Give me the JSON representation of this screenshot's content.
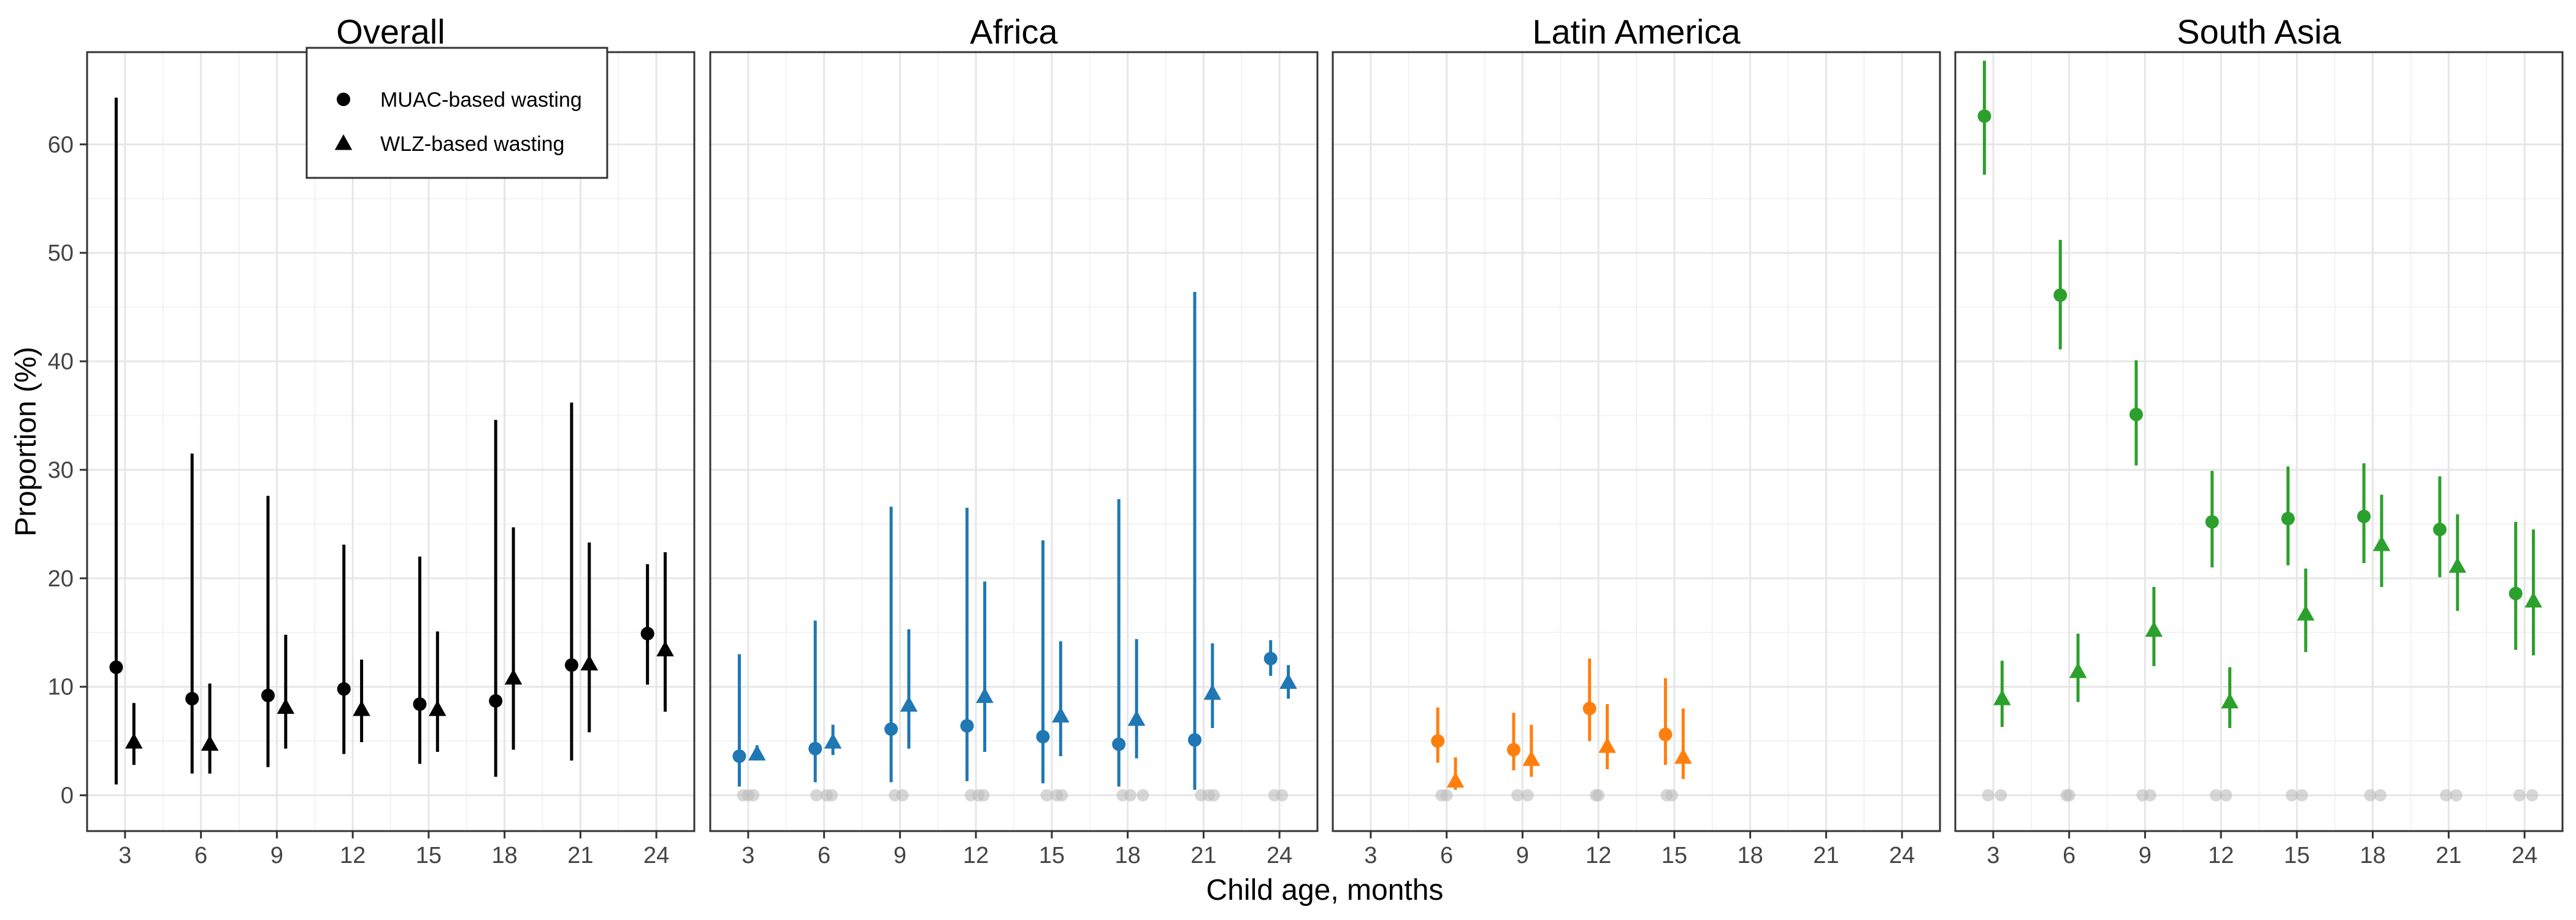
{
  "chart_data": {
    "type": "scatter",
    "xlabel": "Child age, months",
    "ylabel": "Proportion (%)",
    "x_ticks": [
      3,
      6,
      9,
      12,
      15,
      18,
      21,
      24
    ],
    "y_ticks": [
      0,
      10,
      20,
      30,
      40,
      50,
      60
    ],
    "xlim": [
      1.5,
      25.5
    ],
    "ylim": [
      -3.3,
      68.5
    ],
    "grid": true,
    "legend": {
      "position": "top-left",
      "entries": [
        {
          "label": "MUAC-based wasting",
          "shape": "circle"
        },
        {
          "label": "WLZ-based wasting",
          "shape": "triangle"
        }
      ]
    },
    "facets": [
      {
        "title": "Overall",
        "color": "#000000",
        "muac": [
          {
            "x": 3,
            "y": 11.8,
            "lo": 1.0,
            "hi": 64.3
          },
          {
            "x": 6,
            "y": 8.9,
            "lo": 2.0,
            "hi": 31.5
          },
          {
            "x": 9,
            "y": 9.2,
            "lo": 2.6,
            "hi": 27.6
          },
          {
            "x": 12,
            "y": 9.8,
            "lo": 3.8,
            "hi": 23.1
          },
          {
            "x": 15,
            "y": 8.4,
            "lo": 2.9,
            "hi": 22.0
          },
          {
            "x": 18,
            "y": 8.7,
            "lo": 1.7,
            "hi": 34.6
          },
          {
            "x": 21,
            "y": 12.0,
            "lo": 3.2,
            "hi": 36.2
          },
          {
            "x": 24,
            "y": 14.9,
            "lo": 10.2,
            "hi": 21.3
          }
        ],
        "wlz": [
          {
            "x": 3,
            "y": 4.9,
            "lo": 2.8,
            "hi": 8.5
          },
          {
            "x": 6,
            "y": 4.7,
            "lo": 2.0,
            "hi": 10.3
          },
          {
            "x": 9,
            "y": 8.1,
            "lo": 4.3,
            "hi": 14.8
          },
          {
            "x": 12,
            "y": 7.9,
            "lo": 4.9,
            "hi": 12.5
          },
          {
            "x": 15,
            "y": 7.9,
            "lo": 4.0,
            "hi": 15.1
          },
          {
            "x": 18,
            "y": 10.8,
            "lo": 4.2,
            "hi": 24.7
          },
          {
            "x": 21,
            "y": 12.1,
            "lo": 5.8,
            "hi": 23.3
          },
          {
            "x": 24,
            "y": 13.4,
            "lo": 7.7,
            "hi": 22.4
          }
        ],
        "zeros": []
      },
      {
        "title": "Africa",
        "color": "#1F77B4",
        "muac": [
          {
            "x": 3,
            "y": 3.6,
            "lo": 0.8,
            "hi": 13.0
          },
          {
            "x": 6,
            "y": 4.3,
            "lo": 1.2,
            "hi": 16.1
          },
          {
            "x": 9,
            "y": 6.1,
            "lo": 1.2,
            "hi": 26.6
          },
          {
            "x": 12,
            "y": 6.4,
            "lo": 1.3,
            "hi": 26.5
          },
          {
            "x": 15,
            "y": 5.4,
            "lo": 1.1,
            "hi": 23.5
          },
          {
            "x": 18,
            "y": 4.7,
            "lo": 0.8,
            "hi": 27.3
          },
          {
            "x": 21,
            "y": 5.1,
            "lo": 0.5,
            "hi": 46.4
          },
          {
            "x": 24,
            "y": 12.6,
            "lo": 11.0,
            "hi": 14.3
          }
        ],
        "wlz": [
          {
            "x": 3,
            "y": 3.8,
            "lo": 3.2,
            "hi": 4.6
          },
          {
            "x": 6,
            "y": 4.9,
            "lo": 3.7,
            "hi": 6.5
          },
          {
            "x": 9,
            "y": 8.3,
            "lo": 4.3,
            "hi": 15.3
          },
          {
            "x": 12,
            "y": 9.1,
            "lo": 4.0,
            "hi": 19.7
          },
          {
            "x": 15,
            "y": 7.3,
            "lo": 3.6,
            "hi": 14.2
          },
          {
            "x": 18,
            "y": 7.0,
            "lo": 3.4,
            "hi": 14.4
          },
          {
            "x": 21,
            "y": 9.4,
            "lo": 6.2,
            "hi": 14.0
          },
          {
            "x": 24,
            "y": 10.4,
            "lo": 8.9,
            "hi": 12.0
          }
        ],
        "zeros": [
          {
            "x": 2.8,
            "y": 0
          },
          {
            "x": 3.0,
            "y": 0
          },
          {
            "x": 3.2,
            "y": 0
          },
          {
            "x": 5.7,
            "y": 0
          },
          {
            "x": 6.1,
            "y": 0
          },
          {
            "x": 6.3,
            "y": 0
          },
          {
            "x": 8.8,
            "y": 0
          },
          {
            "x": 9.1,
            "y": 0
          },
          {
            "x": 11.8,
            "y": 0
          },
          {
            "x": 12.1,
            "y": 0
          },
          {
            "x": 12.3,
            "y": 0
          },
          {
            "x": 14.8,
            "y": 0
          },
          {
            "x": 15.2,
            "y": 0
          },
          {
            "x": 15.4,
            "y": 0
          },
          {
            "x": 17.8,
            "y": 0
          },
          {
            "x": 18.1,
            "y": 0
          },
          {
            "x": 18.6,
            "y": 0
          },
          {
            "x": 20.9,
            "y": 0
          },
          {
            "x": 21.2,
            "y": 0
          },
          {
            "x": 21.4,
            "y": 0
          },
          {
            "x": 23.8,
            "y": 0
          },
          {
            "x": 24.1,
            "y": 0
          }
        ]
      },
      {
        "title": "Latin America",
        "color": "#FF7F0E",
        "muac": [
          {
            "x": 6,
            "y": 5.0,
            "lo": 3.0,
            "hi": 8.1
          },
          {
            "x": 9,
            "y": 4.2,
            "lo": 2.3,
            "hi": 7.6
          },
          {
            "x": 12,
            "y": 8.0,
            "lo": 5.0,
            "hi": 12.6
          },
          {
            "x": 15,
            "y": 5.6,
            "lo": 2.8,
            "hi": 10.8
          }
        ],
        "wlz": [
          {
            "x": 6,
            "y": 1.3,
            "lo": 0.5,
            "hi": 3.5
          },
          {
            "x": 9,
            "y": 3.3,
            "lo": 1.7,
            "hi": 6.5
          },
          {
            "x": 12,
            "y": 4.5,
            "lo": 2.4,
            "hi": 8.4
          },
          {
            "x": 15,
            "y": 3.5,
            "lo": 1.5,
            "hi": 8.0
          }
        ],
        "zeros": [
          {
            "x": 5.8,
            "y": 0
          },
          {
            "x": 6.0,
            "y": 0
          },
          {
            "x": 8.8,
            "y": 0
          },
          {
            "x": 9.2,
            "y": 0
          },
          {
            "x": 11.9,
            "y": 0
          },
          {
            "x": 12.0,
            "y": 0
          },
          {
            "x": 14.7,
            "y": 0
          },
          {
            "x": 14.9,
            "y": 0
          }
        ]
      },
      {
        "title": "South Asia",
        "color": "#2CA02C",
        "muac": [
          {
            "x": 3,
            "y": 62.6,
            "lo": 57.2,
            "hi": 67.7
          },
          {
            "x": 6,
            "y": 46.1,
            "lo": 41.1,
            "hi": 51.2
          },
          {
            "x": 9,
            "y": 35.1,
            "lo": 30.4,
            "hi": 40.1
          },
          {
            "x": 12,
            "y": 25.2,
            "lo": 21.0,
            "hi": 29.9
          },
          {
            "x": 15,
            "y": 25.5,
            "lo": 21.2,
            "hi": 30.3
          },
          {
            "x": 18,
            "y": 25.7,
            "lo": 21.4,
            "hi": 30.6
          },
          {
            "x": 21,
            "y": 24.5,
            "lo": 20.1,
            "hi": 29.4
          },
          {
            "x": 24,
            "y": 18.6,
            "lo": 13.4,
            "hi": 25.2
          }
        ],
        "wlz": [
          {
            "x": 3,
            "y": 8.9,
            "lo": 6.3,
            "hi": 12.4
          },
          {
            "x": 6,
            "y": 11.4,
            "lo": 8.6,
            "hi": 14.9
          },
          {
            "x": 9,
            "y": 15.2,
            "lo": 11.9,
            "hi": 19.2
          },
          {
            "x": 12,
            "y": 8.6,
            "lo": 6.2,
            "hi": 11.8
          },
          {
            "x": 15,
            "y": 16.7,
            "lo": 13.2,
            "hi": 20.9
          },
          {
            "x": 18,
            "y": 23.1,
            "lo": 19.2,
            "hi": 27.7
          },
          {
            "x": 21,
            "y": 21.1,
            "lo": 17.0,
            "hi": 25.9
          },
          {
            "x": 24,
            "y": 17.9,
            "lo": 12.9,
            "hi": 24.5
          }
        ],
        "zeros": [
          {
            "x": 2.8,
            "y": 0
          },
          {
            "x": 3.3,
            "y": 0
          },
          {
            "x": 5.9,
            "y": 0
          },
          {
            "x": 6.0,
            "y": 0
          },
          {
            "x": 8.9,
            "y": 0
          },
          {
            "x": 9.2,
            "y": 0
          },
          {
            "x": 11.8,
            "y": 0
          },
          {
            "x": 12.2,
            "y": 0
          },
          {
            "x": 14.8,
            "y": 0
          },
          {
            "x": 15.2,
            "y": 0
          },
          {
            "x": 17.9,
            "y": 0
          },
          {
            "x": 18.3,
            "y": 0
          },
          {
            "x": 20.9,
            "y": 0
          },
          {
            "x": 21.3,
            "y": 0
          },
          {
            "x": 23.8,
            "y": 0
          },
          {
            "x": 24.3,
            "y": 0
          }
        ]
      }
    ]
  }
}
